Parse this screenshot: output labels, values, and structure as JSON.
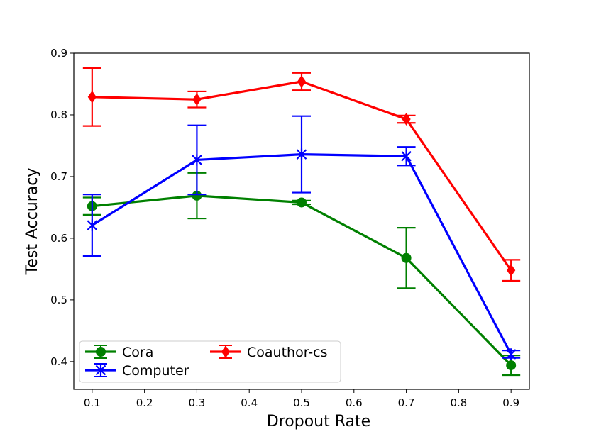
{
  "chart_data": {
    "type": "line",
    "title": "",
    "xlabel": "Dropout Rate",
    "ylabel": "Test Accuracy",
    "xlim": [
      0.065,
      0.935
    ],
    "ylim": [
      0.355,
      0.9
    ],
    "x_ticks": [
      0.1,
      0.2,
      0.3,
      0.4,
      0.5,
      0.6,
      0.7,
      0.8,
      0.9
    ],
    "x_tick_labels": [
      "0.1",
      "0.2",
      "0.3",
      "0.4",
      "0.5",
      "0.6",
      "0.7",
      "0.8",
      "0.9"
    ],
    "y_ticks": [
      0.4,
      0.5,
      0.6,
      0.7,
      0.8,
      0.9
    ],
    "y_tick_labels": [
      "0.4",
      "0.5",
      "0.6",
      "0.7",
      "0.8",
      "0.9"
    ],
    "x": [
      0.1,
      0.3,
      0.5,
      0.7,
      0.9
    ],
    "legend_position": "lower-left",
    "series": [
      {
        "name": "Cora",
        "color": "#008000",
        "marker": "circle",
        "values": [
          0.652,
          0.669,
          0.658,
          0.568,
          0.394
        ],
        "errors": [
          0.014,
          0.037,
          0.003,
          0.049,
          0.016
        ]
      },
      {
        "name": "Computer",
        "color": "#0000ff",
        "marker": "x-star",
        "values": [
          0.621,
          0.727,
          0.736,
          0.733,
          0.412
        ],
        "errors": [
          0.05,
          0.056,
          0.062,
          0.015,
          0.006
        ]
      },
      {
        "name": "Coauthor-cs",
        "color": "#ff0000",
        "marker": "diamond",
        "values": [
          0.829,
          0.825,
          0.854,
          0.793,
          0.548
        ],
        "errors": [
          0.047,
          0.013,
          0.014,
          0.006,
          0.017
        ]
      }
    ]
  }
}
